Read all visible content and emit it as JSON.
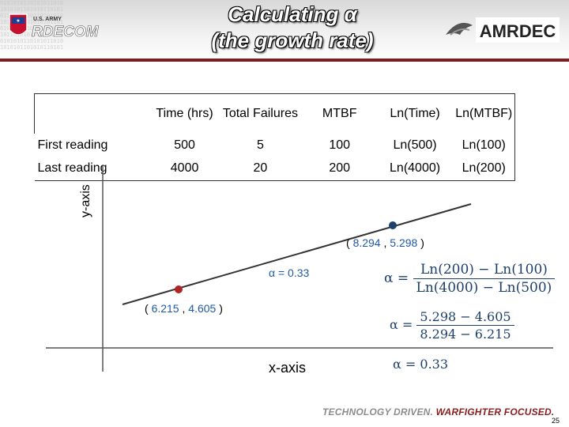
{
  "header": {
    "title_line1": "Calculating α",
    "title_line2": "(the growth rate)",
    "left_logo_text_small": "U.S. ARMY",
    "left_logo_text": "RDECOM",
    "right_logo_text": "AMRDEC"
  },
  "table": {
    "headers": [
      "",
      "Time (hrs)",
      "Total Failures",
      "MTBF",
      "Ln(Time)",
      "Ln(MTBF)"
    ],
    "rows": [
      [
        "First reading",
        "500",
        "5",
        "100",
        "Ln(500)",
        "Ln(100)"
      ],
      [
        "Last reading",
        "4000",
        "20",
        "200",
        "Ln(4000)",
        "Ln(200)"
      ]
    ]
  },
  "plot": {
    "y_axis_label": "y-axis",
    "x_axis_label": "x-axis",
    "point1_label_open": "(",
    "point1_x": "6.215",
    "point1_sep": ",",
    "point1_y": "4.605",
    "point1_label_close": ")",
    "point2_label_open": "(",
    "point2_x": "8.294",
    "point2_sep": ",",
    "point2_y": "5.298",
    "point2_label_close": ")",
    "slope_text": "α = 0.33",
    "point1_color": "#b22222",
    "point2_color": "#1f3f6b"
  },
  "formulas": {
    "alpha_symbol": "α =",
    "eq1_numerator": "Ln(200) − Ln(100)",
    "eq1_denominator": "Ln(4000) − Ln(500)",
    "eq2_numerator": "5.298 − 4.605",
    "eq2_denominator": "8.294 − 6.215",
    "eq3": "α = 0.33"
  },
  "footer": {
    "slogan_gray": "TECHNOLOGY DRIVEN.",
    "slogan_red": "WARFIGHTER FOCUSED.",
    "page_number": "25"
  },
  "colors": {
    "header_bar": "#7a1f1f",
    "formula_text": "#1f3f6b",
    "point_label_numbers": "#1f5aa6"
  }
}
